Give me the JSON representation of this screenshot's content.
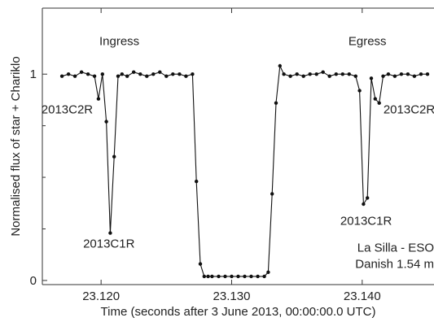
{
  "chart_data": {
    "type": "line",
    "title": "",
    "xlabel": "Time (seconds after 3 June 2013, 00:00:00.0 UTC)",
    "ylabel": "Normalised flux of star + Chariklo",
    "xlim": [
      23.1155,
      23.1455
    ],
    "ylim": [
      -0.02,
      1.32
    ],
    "xticks": [
      23.12,
      23.13,
      23.14
    ],
    "xtick_labels": [
      "23.120",
      "23.130",
      "23.140"
    ],
    "yticks": [
      0,
      1
    ],
    "ytick_labels": [
      "0",
      "1"
    ],
    "ytick_minor": [
      0.25,
      0.5,
      0.75
    ],
    "grid": false,
    "legend": "none",
    "marker": "filled-circle",
    "color": "#111111",
    "series": [
      {
        "x": [
          23.117,
          23.1175,
          23.118,
          23.1185,
          23.119,
          23.1195,
          23.1198,
          23.1201,
          23.1204,
          23.1207,
          23.121,
          23.1213,
          23.1216,
          23.122,
          23.1225,
          23.123,
          23.1235,
          23.124,
          23.1245,
          23.125,
          23.1255,
          23.126,
          23.1265,
          23.127,
          23.1273,
          23.1276,
          23.1279,
          23.1282,
          23.1285,
          23.129,
          23.1295,
          23.13,
          23.1305,
          23.131,
          23.1315,
          23.132,
          23.1325,
          23.1328,
          23.1331,
          23.1334,
          23.1337,
          23.134,
          23.1345,
          23.135,
          23.1355,
          23.136,
          23.1365,
          23.137,
          23.1375,
          23.138,
          23.1385,
          23.139,
          23.1395,
          23.1398,
          23.1401,
          23.1404,
          23.1407,
          23.141,
          23.1413,
          23.1416,
          23.142,
          23.1425,
          23.143,
          23.1435,
          23.144,
          23.1445,
          23.145
        ],
        "y": [
          0.99,
          1.0,
          0.99,
          1.01,
          1.0,
          0.99,
          0.88,
          1.0,
          0.77,
          0.23,
          0.6,
          0.99,
          1.0,
          0.99,
          1.01,
          1.0,
          0.99,
          1.0,
          1.01,
          0.99,
          1.0,
          1.0,
          0.99,
          1.0,
          0.48,
          0.08,
          0.02,
          0.02,
          0.02,
          0.02,
          0.02,
          0.02,
          0.02,
          0.02,
          0.02,
          0.02,
          0.02,
          0.04,
          0.42,
          0.86,
          1.04,
          1.0,
          0.99,
          1.0,
          0.99,
          1.0,
          1.0,
          1.01,
          0.99,
          1.0,
          1.0,
          1.0,
          0.99,
          0.92,
          0.37,
          0.4,
          0.98,
          0.88,
          0.86,
          0.99,
          1.0,
          0.99,
          1.0,
          1.0,
          0.99,
          1.0,
          1.0
        ]
      }
    ],
    "annotations": [
      {
        "text": "Ingress",
        "x": 23.1214,
        "y": 1.14,
        "anchor": "middle"
      },
      {
        "text": "Egress",
        "x": 23.1404,
        "y": 1.14,
        "anchor": "middle"
      },
      {
        "text": "2013C2R",
        "x": 23.1174,
        "y": 0.81,
        "anchor": "middle"
      },
      {
        "text": "2013C1R",
        "x": 23.1206,
        "y": 0.16,
        "anchor": "middle"
      },
      {
        "text": "2013C1R",
        "x": 23.1403,
        "y": 0.27,
        "anchor": "middle"
      },
      {
        "text": "2013C2R",
        "x": 23.1436,
        "y": 0.81,
        "anchor": "middle"
      },
      {
        "text": "La Silla - ESO",
        "x": 23.1455,
        "y": 0.14,
        "anchor": "end"
      },
      {
        "text": "Danish 1.54 m",
        "x": 23.1455,
        "y": 0.06,
        "anchor": "end"
      }
    ]
  }
}
